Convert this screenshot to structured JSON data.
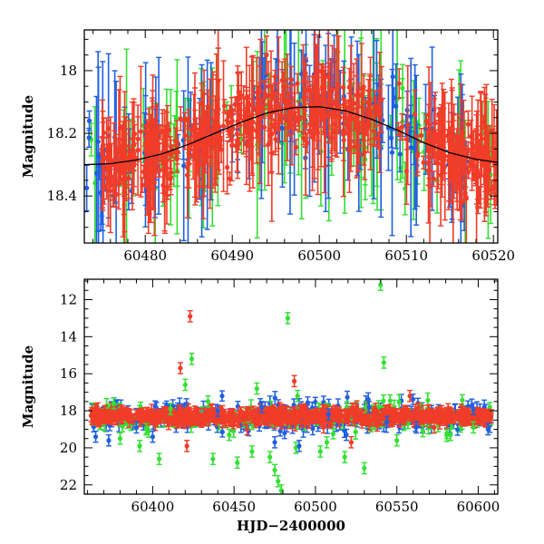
{
  "chart_data": [
    {
      "type": "scatter",
      "panel": "top",
      "ylabel": "Magnitude",
      "xlabel": "",
      "xlim": [
        60473,
        60520.5
      ],
      "ylim": [
        18.55,
        17.87
      ],
      "y_inverted": true,
      "xticks": [
        60480,
        60490,
        60500,
        60510,
        60520
      ],
      "yticks": [
        18,
        18.2,
        18.4
      ],
      "series_colors": {
        "blue": "#1f5fe0",
        "green": "#33e033",
        "red": "#f03c28"
      },
      "model_curve": {
        "color": "#000000",
        "x": [
          60473,
          60476,
          60479,
          60482,
          60485,
          60488,
          60491,
          60494,
          60497,
          60500,
          60503,
          60506,
          60509,
          60512,
          60515,
          60518,
          60520.5
        ],
        "y": [
          18.3,
          18.297,
          18.285,
          18.265,
          18.235,
          18.2,
          18.165,
          18.135,
          18.118,
          18.115,
          18.128,
          18.155,
          18.19,
          18.23,
          18.262,
          18.283,
          18.293
        ]
      }
    },
    {
      "type": "scatter",
      "panel": "bottom",
      "ylabel": "Magnitude",
      "xlabel": "HJD−2400000",
      "xlim": [
        60358,
        60612
      ],
      "ylim": [
        22.5,
        10.9
      ],
      "y_inverted": true,
      "xticks": [
        60400,
        60450,
        60500,
        60550,
        60600
      ],
      "yticks": [
        12,
        14,
        16,
        18,
        20,
        22
      ],
      "series_colors": {
        "blue": "#1f5fe0",
        "green": "#33e033",
        "red": "#f03c28"
      },
      "outliers": {
        "red": [
          [
            60423,
            12.9
          ],
          [
            60417,
            15.7
          ],
          [
            60421,
            19.9
          ],
          [
            60487,
            16.4
          ],
          [
            60505,
            18.9
          ],
          [
            60522,
            19.7
          ],
          [
            60538,
            18.8
          ],
          [
            60558,
            17.2
          ],
          [
            60573,
            18.9
          ],
          [
            60458,
            19.0
          ]
        ],
        "green": [
          [
            60540,
            11.2
          ],
          [
            60483,
            13.0
          ],
          [
            60542,
            15.4
          ],
          [
            60424,
            15.2
          ],
          [
            60420,
            16.6
          ],
          [
            60464,
            16.8
          ],
          [
            60475,
            21.2
          ],
          [
            60477,
            21.8
          ],
          [
            60479,
            22.3
          ],
          [
            60404,
            20.6
          ],
          [
            60380,
            19.5
          ],
          [
            60392,
            19.9
          ],
          [
            60437,
            20.6
          ],
          [
            60461,
            20.2
          ],
          [
            60472,
            20.5
          ],
          [
            60489,
            17.2
          ],
          [
            60530,
            21.1
          ],
          [
            60531,
            17.8
          ],
          [
            60518,
            20.5
          ],
          [
            60550,
            19.6
          ],
          [
            60583,
            19.3
          ],
          [
            60597,
            18.9
          ],
          [
            60447,
            19.3
          ],
          [
            60452,
            20.8
          ],
          [
            60488,
            20.0
          ],
          [
            60503,
            20.2
          ],
          [
            60507,
            19.7
          ],
          [
            60566,
            19.1
          ],
          [
            60396,
            19.0
          ],
          [
            60411,
            17.9
          ],
          [
            60434,
            17.5
          ],
          [
            60376,
            17.6
          ]
        ],
        "blue": [
          [
            60365,
            19.4
          ],
          [
            60373,
            19.6
          ],
          [
            60390,
            18.9
          ],
          [
            60400,
            19.4
          ],
          [
            60440,
            18.0
          ],
          [
            60475,
            19.7
          ],
          [
            60481,
            19.2
          ],
          [
            60490,
            19.9
          ],
          [
            60519,
            19.3
          ],
          [
            60533,
            17.8
          ],
          [
            60544,
            18.6
          ],
          [
            60562,
            18.9
          ],
          [
            60597,
            17.9
          ],
          [
            60606,
            19.0
          ],
          [
            60467,
            17.8
          ],
          [
            60508,
            18.2
          ]
        ]
      }
    }
  ]
}
